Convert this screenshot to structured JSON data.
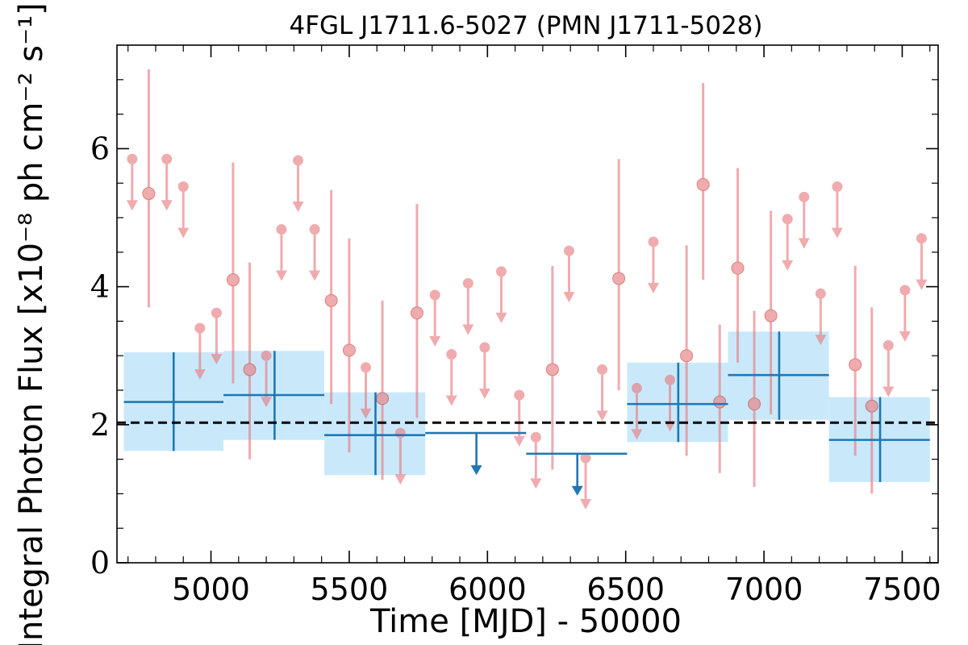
{
  "chart_data": {
    "type": "scatter",
    "title": "4FGL J1711.6-5027 (PMN J1711-5028)",
    "xlabel": "Time [MJD] - 50000",
    "ylabel": "Integral Photon Flux [x10⁻⁸ ph cm⁻² s⁻¹]",
    "xlim": [
      4660,
      7630
    ],
    "ylim": [
      0,
      7.5
    ],
    "xticks": [
      "5000",
      "5500",
      "6000",
      "6500",
      "7000",
      "7500"
    ],
    "yticks": [
      "0",
      "2",
      "4",
      "6"
    ],
    "reference_line": {
      "style": "dashed",
      "y": 2.03,
      "color": "#000000"
    },
    "colors": {
      "short_bin": "#e8797d",
      "long_bin": "#1f77b4",
      "long_bin_fill": "#c9e9fb"
    },
    "series": [
      {
        "bin": "short",
        "points": [
          {
            "x": 4715,
            "y": 5.85,
            "upper_limit": true
          },
          {
            "x": 4775,
            "y": 5.35,
            "ylo": 3.7,
            "yhi": 7.15
          },
          {
            "x": 4840,
            "y": 5.85,
            "upper_limit": true
          },
          {
            "x": 4900,
            "y": 5.45,
            "upper_limit": true
          },
          {
            "x": 4960,
            "y": 3.4,
            "upper_limit": true
          },
          {
            "x": 5020,
            "y": 3.62,
            "upper_limit": true
          },
          {
            "x": 5080,
            "y": 4.1,
            "ylo": 2.6,
            "yhi": 5.8
          },
          {
            "x": 5140,
            "y": 2.8,
            "ylo": 1.5,
            "yhi": 4.35
          },
          {
            "x": 5200,
            "y": 3.0,
            "upper_limit": true
          },
          {
            "x": 5255,
            "y": 4.83,
            "upper_limit": true
          },
          {
            "x": 5315,
            "y": 5.83,
            "upper_limit": true
          },
          {
            "x": 5375,
            "y": 4.83,
            "upper_limit": true
          },
          {
            "x": 5435,
            "y": 3.8,
            "ylo": 2.3,
            "yhi": 5.4
          },
          {
            "x": 5500,
            "y": 3.08,
            "ylo": 1.6,
            "yhi": 4.7
          },
          {
            "x": 5560,
            "y": 2.83,
            "upper_limit": true
          },
          {
            "x": 5620,
            "y": 2.38,
            "ylo": 1.2,
            "yhi": 3.8
          },
          {
            "x": 5685,
            "y": 1.88,
            "upper_limit": true
          },
          {
            "x": 5745,
            "y": 3.62,
            "ylo": 2.1,
            "yhi": 5.2
          },
          {
            "x": 5810,
            "y": 3.88,
            "upper_limit": true
          },
          {
            "x": 5870,
            "y": 3.02,
            "upper_limit": true
          },
          {
            "x": 5930,
            "y": 4.05,
            "upper_limit": true
          },
          {
            "x": 5990,
            "y": 3.12,
            "upper_limit": true
          },
          {
            "x": 6050,
            "y": 4.22,
            "upper_limit": true
          },
          {
            "x": 6115,
            "y": 2.43,
            "upper_limit": true
          },
          {
            "x": 6175,
            "y": 1.82,
            "upper_limit": true
          },
          {
            "x": 6235,
            "y": 2.8,
            "ylo": 1.35,
            "yhi": 4.3
          },
          {
            "x": 6295,
            "y": 4.52,
            "upper_limit": true
          },
          {
            "x": 6355,
            "y": 1.52,
            "upper_limit": true
          },
          {
            "x": 6415,
            "y": 2.8,
            "upper_limit": true
          },
          {
            "x": 6475,
            "y": 4.12,
            "ylo": 2.5,
            "yhi": 5.85
          },
          {
            "x": 6540,
            "y": 2.53,
            "upper_limit": true
          },
          {
            "x": 6600,
            "y": 4.65,
            "upper_limit": true
          },
          {
            "x": 6660,
            "y": 2.65,
            "upper_limit": true
          },
          {
            "x": 6720,
            "y": 3.0,
            "ylo": 1.55,
            "yhi": 4.6
          },
          {
            "x": 6780,
            "y": 5.48,
            "ylo": 4.1,
            "yhi": 6.95
          },
          {
            "x": 6840,
            "y": 2.33,
            "ylo": 1.3,
            "yhi": 3.45
          },
          {
            "x": 6905,
            "y": 4.27,
            "ylo": 2.9,
            "yhi": 5.72
          },
          {
            "x": 6965,
            "y": 2.3,
            "ylo": 1.1,
            "yhi": 3.65
          },
          {
            "x": 7025,
            "y": 3.58,
            "ylo": 2.15,
            "yhi": 5.1
          },
          {
            "x": 7085,
            "y": 4.98,
            "upper_limit": true
          },
          {
            "x": 7145,
            "y": 5.3,
            "upper_limit": true
          },
          {
            "x": 7205,
            "y": 3.9,
            "upper_limit": true
          },
          {
            "x": 7265,
            "y": 5.45,
            "upper_limit": true
          },
          {
            "x": 7330,
            "y": 2.87,
            "ylo": 1.55,
            "yhi": 4.3
          },
          {
            "x": 7390,
            "y": 2.27,
            "ylo": 1.0,
            "yhi": 3.7
          },
          {
            "x": 7450,
            "y": 3.15,
            "upper_limit": true
          },
          {
            "x": 7510,
            "y": 3.95,
            "upper_limit": true
          },
          {
            "x": 7570,
            "y": 4.7,
            "upper_limit": true
          }
        ]
      },
      {
        "bin": "long",
        "points": [
          {
            "x": 4865,
            "y": 2.33,
            "xlo": 4685,
            "xhi": 5045,
            "ylo": 1.62,
            "yhi": 3.05,
            "upper_limit": false
          },
          {
            "x": 5230,
            "y": 2.43,
            "xlo": 5045,
            "xhi": 5410,
            "ylo": 1.78,
            "yhi": 3.07,
            "upper_limit": false
          },
          {
            "x": 5595,
            "y": 1.85,
            "xlo": 5410,
            "xhi": 5775,
            "ylo": 1.27,
            "yhi": 2.47,
            "upper_limit": false
          },
          {
            "x": 5960,
            "y": 1.88,
            "xlo": 5775,
            "xhi": 6140,
            "upper_limit": true
          },
          {
            "x": 6325,
            "y": 1.58,
            "xlo": 6140,
            "xhi": 6505,
            "upper_limit": true
          },
          {
            "x": 6690,
            "y": 2.3,
            "xlo": 6505,
            "xhi": 6870,
            "ylo": 1.75,
            "yhi": 2.9,
            "upper_limit": false
          },
          {
            "x": 7055,
            "y": 2.72,
            "xlo": 6870,
            "xhi": 7235,
            "ylo": 2.07,
            "yhi": 3.35,
            "upper_limit": false
          },
          {
            "x": 7420,
            "y": 1.78,
            "xlo": 7235,
            "xhi": 7600,
            "ylo": 1.17,
            "yhi": 2.4,
            "upper_limit": false
          }
        ]
      }
    ]
  }
}
